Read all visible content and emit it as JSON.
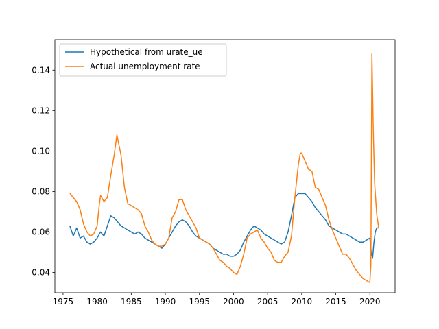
{
  "chart_data": {
    "type": "line",
    "title": "",
    "xlabel": "",
    "ylabel": "",
    "xlim": [
      1973.8,
      2023.7
    ],
    "ylim": [
      0.03,
      0.155
    ],
    "xticks": [
      1975,
      1980,
      1985,
      1990,
      1995,
      2000,
      2005,
      2010,
      2015,
      2020
    ],
    "xtick_labels": [
      "1975",
      "1980",
      "1985",
      "1990",
      "1995",
      "2000",
      "2005",
      "2010",
      "2015",
      "2020"
    ],
    "yticks": [
      0.04,
      0.06,
      0.08,
      0.1,
      0.12,
      0.14
    ],
    "ytick_labels": [
      "0.04",
      "0.06",
      "0.08",
      "0.10",
      "0.12",
      "0.14"
    ],
    "grid": false,
    "legend_position": "top-left",
    "series": [
      {
        "name": "Hypothetical from urate_ue",
        "color": "#1f77b4",
        "x": [
          1976.0,
          1976.5,
          1977.0,
          1977.5,
          1978.0,
          1978.5,
          1979.0,
          1979.5,
          1980.0,
          1980.5,
          1981.0,
          1981.5,
          1982.0,
          1982.5,
          1983.0,
          1983.5,
          1984.0,
          1984.5,
          1985.0,
          1985.5,
          1986.0,
          1986.5,
          1987.0,
          1987.5,
          1988.0,
          1988.5,
          1989.0,
          1989.5,
          1990.0,
          1990.5,
          1991.0,
          1991.5,
          1992.0,
          1992.5,
          1993.0,
          1993.5,
          1994.0,
          1994.5,
          1995.0,
          1995.5,
          1996.0,
          1996.5,
          1997.0,
          1997.5,
          1998.0,
          1998.5,
          1999.0,
          1999.5,
          2000.0,
          2000.5,
          2001.0,
          2001.5,
          2002.0,
          2002.5,
          2003.0,
          2003.5,
          2004.0,
          2004.5,
          2005.0,
          2005.5,
          2006.0,
          2006.5,
          2007.0,
          2007.5,
          2008.0,
          2008.5,
          2009.0,
          2009.5,
          2010.0,
          2010.5,
          2011.0,
          2011.5,
          2012.0,
          2012.5,
          2013.0,
          2013.5,
          2014.0,
          2014.5,
          2015.0,
          2015.5,
          2016.0,
          2016.5,
          2017.0,
          2017.5,
          2018.0,
          2018.5,
          2019.0,
          2019.5,
          2020.0,
          2020.2,
          2020.4,
          2020.6,
          2020.8,
          2021.0,
          2021.3
        ],
        "values": [
          0.063,
          0.058,
          0.062,
          0.057,
          0.058,
          0.055,
          0.054,
          0.055,
          0.057,
          0.06,
          0.058,
          0.063,
          0.068,
          0.067,
          0.065,
          0.063,
          0.062,
          0.061,
          0.06,
          0.059,
          0.06,
          0.059,
          0.057,
          0.056,
          0.055,
          0.054,
          0.053,
          0.052,
          0.054,
          0.057,
          0.06,
          0.063,
          0.065,
          0.066,
          0.065,
          0.063,
          0.06,
          0.058,
          0.057,
          0.056,
          0.055,
          0.054,
          0.052,
          0.051,
          0.05,
          0.049,
          0.049,
          0.048,
          0.048,
          0.049,
          0.051,
          0.055,
          0.058,
          0.061,
          0.063,
          0.062,
          0.061,
          0.059,
          0.058,
          0.057,
          0.056,
          0.055,
          0.054,
          0.055,
          0.06,
          0.068,
          0.077,
          0.079,
          0.079,
          0.079,
          0.077,
          0.075,
          0.072,
          0.07,
          0.068,
          0.066,
          0.063,
          0.062,
          0.061,
          0.06,
          0.059,
          0.059,
          0.058,
          0.057,
          0.056,
          0.055,
          0.055,
          0.056,
          0.057,
          0.05,
          0.047,
          0.055,
          0.06,
          0.062,
          0.062
        ]
      },
      {
        "name": "Actual unemployment rate",
        "color": "#ff7f0e",
        "x": [
          1976.0,
          1976.5,
          1977.0,
          1977.5,
          1978.0,
          1978.5,
          1979.0,
          1979.5,
          1980.0,
          1980.3,
          1980.5,
          1981.0,
          1981.5,
          1982.0,
          1982.5,
          1982.9,
          1983.2,
          1983.5,
          1984.0,
          1984.5,
          1985.0,
          1985.5,
          1986.0,
          1986.5,
          1987.0,
          1987.5,
          1988.0,
          1988.5,
          1989.0,
          1989.5,
          1990.0,
          1990.5,
          1991.0,
          1991.5,
          1992.0,
          1992.5,
          1993.0,
          1993.5,
          1994.0,
          1994.5,
          1995.0,
          1995.5,
          1996.0,
          1996.5,
          1997.0,
          1997.5,
          1998.0,
          1998.5,
          1999.0,
          1999.5,
          2000.0,
          2000.5,
          2001.0,
          2001.5,
          2002.0,
          2002.5,
          2003.0,
          2003.5,
          2004.0,
          2004.5,
          2005.0,
          2005.5,
          2006.0,
          2006.5,
          2007.0,
          2007.5,
          2008.0,
          2008.5,
          2009.0,
          2009.5,
          2009.8,
          2010.0,
          2010.5,
          2011.0,
          2011.5,
          2012.0,
          2012.5,
          2013.0,
          2013.5,
          2014.0,
          2014.5,
          2015.0,
          2015.5,
          2016.0,
          2016.5,
          2017.0,
          2017.5,
          2018.0,
          2018.5,
          2019.0,
          2019.5,
          2020.0,
          2020.15,
          2020.3,
          2020.4,
          2020.5,
          2020.7,
          2021.0,
          2021.3
        ],
        "values": [
          0.079,
          0.077,
          0.075,
          0.071,
          0.064,
          0.06,
          0.058,
          0.059,
          0.063,
          0.073,
          0.078,
          0.075,
          0.077,
          0.088,
          0.098,
          0.108,
          0.103,
          0.098,
          0.082,
          0.074,
          0.073,
          0.072,
          0.071,
          0.069,
          0.063,
          0.06,
          0.056,
          0.054,
          0.053,
          0.053,
          0.054,
          0.057,
          0.067,
          0.07,
          0.076,
          0.076,
          0.071,
          0.068,
          0.065,
          0.062,
          0.057,
          0.056,
          0.055,
          0.054,
          0.052,
          0.049,
          0.046,
          0.045,
          0.043,
          0.042,
          0.04,
          0.039,
          0.043,
          0.049,
          0.057,
          0.059,
          0.06,
          0.061,
          0.057,
          0.055,
          0.052,
          0.05,
          0.046,
          0.045,
          0.045,
          0.048,
          0.05,
          0.058,
          0.077,
          0.093,
          0.099,
          0.099,
          0.095,
          0.091,
          0.09,
          0.082,
          0.081,
          0.077,
          0.073,
          0.066,
          0.061,
          0.057,
          0.053,
          0.049,
          0.049,
          0.047,
          0.044,
          0.041,
          0.039,
          0.037,
          0.036,
          0.035,
          0.044,
          0.148,
          0.13,
          0.11,
          0.084,
          0.069,
          0.062
        ]
      }
    ]
  }
}
